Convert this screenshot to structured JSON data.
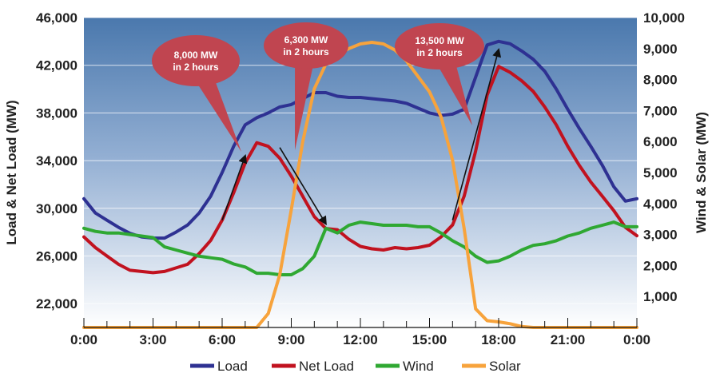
{
  "chart_data": {
    "type": "line",
    "ylabel": "Load & Net Load (MW)",
    "y2label": "Wind & Solar (MW)",
    "ylim": [
      20000,
      46000
    ],
    "y2lim": [
      0,
      10000
    ],
    "xlim": [
      0,
      24
    ],
    "grid": "horizontal",
    "legend_position": "bottom-center",
    "x_ticks": [
      {
        "v": 0,
        "label": "0:00"
      },
      {
        "v": 3,
        "label": "3:00"
      },
      {
        "v": 6,
        "label": "6:00"
      },
      {
        "v": 9,
        "label": "9:00"
      },
      {
        "v": 12,
        "label": "12:00"
      },
      {
        "v": 15,
        "label": "15:00"
      },
      {
        "v": 18,
        "label": "18:00"
      },
      {
        "v": 21,
        "label": "21:00"
      },
      {
        "v": 24,
        "label": "0:00"
      }
    ],
    "y_ticks": [
      {
        "v": 22000,
        "label": "22,000"
      },
      {
        "v": 26000,
        "label": "26,000"
      },
      {
        "v": 30000,
        "label": "30,000"
      },
      {
        "v": 34000,
        "label": "34,000"
      },
      {
        "v": 38000,
        "label": "38,000"
      },
      {
        "v": 42000,
        "label": "42,000"
      },
      {
        "v": 46000,
        "label": "46,000"
      }
    ],
    "y2_ticks": [
      {
        "v": 1000,
        "label": "1,000"
      },
      {
        "v": 2000,
        "label": "2,000"
      },
      {
        "v": 3000,
        "label": "3,000"
      },
      {
        "v": 4000,
        "label": "4,000"
      },
      {
        "v": 5000,
        "label": "5,000"
      },
      {
        "v": 6000,
        "label": "6,000"
      },
      {
        "v": 7000,
        "label": "7,000"
      },
      {
        "v": 8000,
        "label": "8,000"
      },
      {
        "v": 9000,
        "label": "9,000"
      },
      {
        "v": 10000,
        "label": "10,000"
      }
    ],
    "series": [
      {
        "name": "Load",
        "axis": "left",
        "color": "#2e3192",
        "x": [
          0,
          0.5,
          1,
          1.5,
          2,
          2.5,
          3,
          3.5,
          4,
          4.5,
          5,
          5.5,
          6,
          6.5,
          7,
          7.5,
          8,
          8.5,
          9,
          9.5,
          10,
          10.5,
          11,
          11.5,
          12,
          12.5,
          13,
          13.5,
          14,
          14.5,
          15,
          15.5,
          16,
          16.5,
          17,
          17.5,
          18,
          18.5,
          19,
          19.5,
          20,
          20.5,
          21,
          21.5,
          22,
          22.5,
          23,
          23.5,
          24
        ],
        "y": [
          30800,
          29600,
          29000,
          28400,
          27900,
          27600,
          27500,
          27500,
          28000,
          28600,
          29600,
          31000,
          33000,
          35200,
          37000,
          37600,
          38000,
          38500,
          38700,
          39200,
          39700,
          39700,
          39400,
          39300,
          39300,
          39200,
          39100,
          39000,
          38800,
          38400,
          38000,
          37800,
          37900,
          38300,
          41000,
          43700,
          44000,
          43800,
          43200,
          42500,
          41500,
          40000,
          38300,
          36700,
          35200,
          33600,
          31800,
          30600,
          30800
        ]
      },
      {
        "name": "Net Load",
        "axis": "left",
        "color": "#c1121f",
        "x": [
          0,
          0.5,
          1,
          1.5,
          2,
          2.5,
          3,
          3.5,
          4,
          4.5,
          5,
          5.5,
          6,
          6.5,
          7,
          7.5,
          8,
          8.5,
          9,
          9.5,
          10,
          10.5,
          11,
          11.5,
          12,
          12.5,
          13,
          13.5,
          14,
          14.5,
          15,
          15.5,
          16,
          16.5,
          17,
          17.5,
          18,
          18.5,
          19,
          19.5,
          20,
          20.5,
          21,
          21.5,
          22,
          22.5,
          23,
          23.5,
          24
        ],
        "y": [
          27600,
          26700,
          26000,
          25300,
          24800,
          24700,
          24600,
          24700,
          25000,
          25300,
          26200,
          27300,
          29000,
          31300,
          33800,
          35500,
          35200,
          34200,
          32700,
          31000,
          29300,
          28300,
          28200,
          27400,
          26800,
          26600,
          26500,
          26700,
          26600,
          26700,
          26900,
          27600,
          28600,
          31000,
          34800,
          39500,
          41900,
          41400,
          40700,
          39800,
          38500,
          37000,
          35200,
          33600,
          32200,
          31000,
          29800,
          28400,
          27700
        ]
      },
      {
        "name": "Wind",
        "axis": "right",
        "color": "#2fa832",
        "x": [
          0,
          0.5,
          1,
          1.5,
          2,
          2.5,
          3,
          3.5,
          4,
          4.5,
          5,
          5.5,
          6,
          6.5,
          7,
          7.5,
          8,
          8.5,
          9,
          9.5,
          10,
          10.5,
          11,
          11.5,
          12,
          12.5,
          13,
          13.5,
          14,
          14.5,
          15,
          15.5,
          16,
          16.5,
          17,
          17.5,
          18,
          18.5,
          19,
          19.5,
          20,
          20.5,
          21,
          21.5,
          22,
          22.5,
          23,
          23.5,
          24
        ],
        "y": [
          3200,
          3100,
          3050,
          3050,
          3000,
          2950,
          2900,
          2600,
          2500,
          2400,
          2300,
          2250,
          2200,
          2050,
          1950,
          1750,
          1750,
          1700,
          1700,
          1900,
          2300,
          3200,
          3050,
          3300,
          3400,
          3350,
          3300,
          3300,
          3300,
          3250,
          3250,
          3050,
          2800,
          2600,
          2300,
          2100,
          2150,
          2300,
          2500,
          2650,
          2700,
          2800,
          2950,
          3050,
          3200,
          3300,
          3400,
          3250,
          3250
        ]
      },
      {
        "name": "Solar",
        "axis": "right",
        "color": "#f7a33c",
        "x": [
          0,
          0.5,
          1,
          1.5,
          2,
          2.5,
          3,
          3.5,
          4,
          4.5,
          5,
          5.5,
          6,
          6.5,
          7,
          7.5,
          8,
          8.5,
          9,
          9.5,
          10,
          10.5,
          11,
          11.5,
          12,
          12.5,
          13,
          13.5,
          14,
          14.5,
          15,
          15.5,
          16,
          16.5,
          17,
          17.5,
          18,
          18.5,
          19,
          19.5,
          20,
          20.5,
          21,
          21.5,
          22,
          22.5,
          23,
          23.5,
          24
        ],
        "y": [
          0,
          0,
          0,
          0,
          0,
          0,
          0,
          0,
          0,
          0,
          0,
          0,
          0,
          0,
          0,
          0,
          450,
          1700,
          3800,
          6000,
          7700,
          8500,
          8800,
          9000,
          9150,
          9200,
          9150,
          8950,
          8600,
          8100,
          7600,
          6800,
          5400,
          3200,
          600,
          220,
          180,
          120,
          30,
          0,
          0,
          0,
          0,
          0,
          0,
          0,
          0,
          0,
          0
        ]
      }
    ],
    "annotations": [
      {
        "text": [
          "8,000 MW",
          "in 2 hours"
        ],
        "arrow_from": [
          6,
          29000
        ],
        "arrow_to": [
          7,
          34400
        ]
      },
      {
        "text": [
          "6,300 MW",
          "in 2 hours"
        ],
        "arrow_from": [
          8.5,
          35100
        ],
        "arrow_to": [
          10.5,
          28700
        ]
      },
      {
        "text": [
          "13,500 MW",
          "in 2 hours"
        ],
        "arrow_from": [
          16,
          29000
        ],
        "arrow_to": [
          18,
          43300
        ]
      }
    ]
  },
  "legend": [
    {
      "name": "Load",
      "color": "#2e3192"
    },
    {
      "name": "Net Load",
      "color": "#c1121f"
    },
    {
      "name": "Wind",
      "color": "#2fa832"
    },
    {
      "name": "Solar",
      "color": "#f7a33c"
    }
  ]
}
